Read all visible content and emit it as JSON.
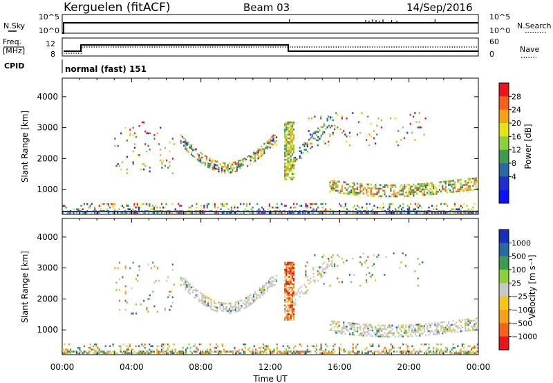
{
  "header": {
    "station": "Kerguelen (fitACF)",
    "beam": "Beam 03",
    "date": "14/Sep/2016"
  },
  "top_panels": {
    "nsky_label": "N.Sky",
    "nsearch_label": "N.Search",
    "nsky_ticks": [
      "10^5",
      "10^0"
    ],
    "nsearch_ticks": [
      "10^5",
      "10^0"
    ],
    "freq_label_1": "Freq.",
    "freq_label_2": "[MHz]",
    "freq_ticks": [
      "12",
      "8"
    ],
    "nave_label": "Nave",
    "nave_ticks": [
      "60",
      "0"
    ],
    "cpid_label": "CPID",
    "cpid_text": "normal (fast) 151"
  },
  "chart_data": [
    {
      "type": "heatmap",
      "name": "power",
      "ylabel": "Slant Range [km]",
      "yticks": [
        1000,
        2000,
        3000,
        4000
      ],
      "ylim": [
        200,
        4600
      ],
      "xlim_hours": [
        0,
        24
      ],
      "xtick_labels": [
        "00:00",
        "04:00",
        "08:00",
        "12:00",
        "16:00",
        "20:00",
        "00:00"
      ],
      "colorbar_label": "Power [dB]",
      "colorbar_ticks": [
        "28",
        "24",
        "20",
        "16",
        "12",
        "8",
        "4"
      ],
      "colorbar_colors": [
        "#e8161b",
        "#f2621a",
        "#f5a118",
        "#e2e21d",
        "#8bcf3f",
        "#3e9a4e",
        "#2b6aa0",
        "#1f2fcf",
        "#1010ff"
      ],
      "ground_line_color": "#1c3a9e"
    },
    {
      "type": "heatmap",
      "name": "velocity",
      "ylabel": "Slant Range [km]",
      "yticks": [
        1000,
        2000,
        3000,
        4000
      ],
      "ylim": [
        200,
        4600
      ],
      "xlim_hours": [
        0,
        24
      ],
      "xtick_labels": [
        "00:00",
        "04:00",
        "08:00",
        "12:00",
        "16:00",
        "20:00",
        "00:00"
      ],
      "xlabel": "Time UT",
      "colorbar_label": "Velocity [m s⁻¹]",
      "colorbar_ticks": [
        "1000",
        "500",
        "100",
        "25",
        "−25",
        "−100",
        "−500",
        "−1000"
      ],
      "colorbar_colors": [
        "#1a2fb8",
        "#2b6aa0",
        "#3e9a4e",
        "#8bcf3f",
        "#c8c8c8",
        "#f5c518",
        "#f5a118",
        "#f2621a",
        "#e8161b"
      ]
    }
  ],
  "scatter_bands": [
    {
      "t0": 0.0,
      "t1": 24.0,
      "r0": 220,
      "r1": 560,
      "density": 0.22,
      "palette": "mix"
    },
    {
      "t0": 0.0,
      "t1": 24.0,
      "r0": 220,
      "r1": 320,
      "density": 0.55,
      "palette": "mix"
    },
    {
      "t0": 6.8,
      "t1": 12.4,
      "r0": 1550,
      "r1": 2750,
      "density": 0.55,
      "palette": "arc"
    },
    {
      "t0": 12.8,
      "t1": 13.4,
      "r0": 1300,
      "r1": 3200,
      "density": 0.75,
      "palette": "spike"
    },
    {
      "t0": 13.4,
      "t1": 15.6,
      "r0": 1800,
      "r1": 3400,
      "density": 0.28,
      "palette": "rise"
    },
    {
      "t0": 15.4,
      "t1": 24.0,
      "r0": 700,
      "r1": 1400,
      "density": 0.55,
      "palette": "late"
    },
    {
      "t0": 3.0,
      "t1": 6.5,
      "r0": 1500,
      "r1": 3200,
      "density": 0.06,
      "palette": "mix"
    },
    {
      "t0": 14.0,
      "t1": 21.0,
      "r0": 2400,
      "r1": 3500,
      "density": 0.05,
      "palette": "mix"
    }
  ]
}
